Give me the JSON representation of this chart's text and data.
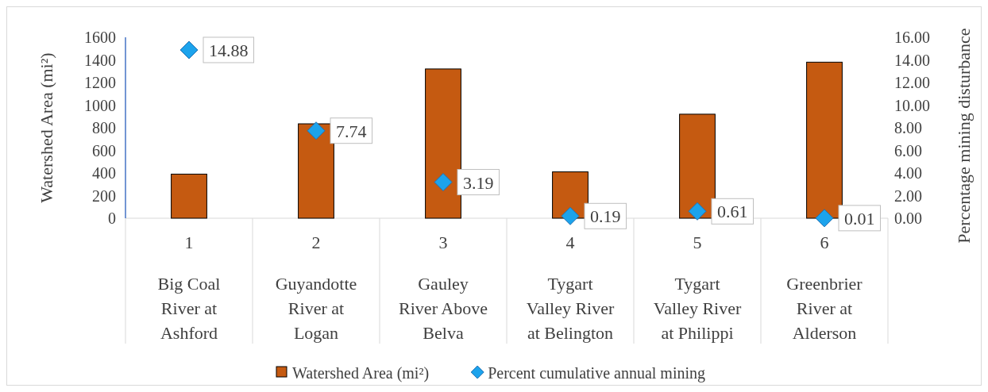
{
  "chart_data": {
    "type": "bar",
    "categories": [
      "1\nBig Coal River at Ashford",
      "2\nGuyandotte River at Logan",
      "3\nGauley River Above Belva",
      "4\nTygart Valley River at Belington",
      "5\nTygart Valley River at Philippi",
      "6\nGreenbrier River at Alderson"
    ],
    "series": [
      {
        "name": "Watershed Area (mi²)",
        "color": "#c55a11",
        "values": [
          390,
          835,
          1320,
          410,
          920,
          1380
        ]
      },
      {
        "name": "Percent cumulative annual mining",
        "type": "scatter",
        "axis": "y2",
        "marker": "diamond",
        "color": "#1ca3ec",
        "values": [
          14.88,
          7.74,
          3.19,
          0.19,
          0.61,
          0.01
        ],
        "data_labels": true
      }
    ],
    "ylabel": "Watershed Area (mi²)",
    "y2label": "Percentage mining disturbance",
    "ylim": [
      0,
      1600
    ],
    "yticks": [
      0,
      200,
      400,
      600,
      800,
      1000,
      1200,
      1400,
      1600
    ],
    "y2lim": [
      0,
      16
    ],
    "y2ticks": [
      {
        "value": 0,
        "label": "0.00"
      },
      {
        "value": 2,
        "label": "2.00"
      },
      {
        "value": 4,
        "label": "4.00"
      },
      {
        "value": 6,
        "label": "6.00"
      },
      {
        "value": 8,
        "label": "8.00"
      },
      {
        "value": 10,
        "label": "10.00"
      },
      {
        "value": 12,
        "label": "12.00"
      },
      {
        "value": 14,
        "label": "14.00"
      },
      {
        "value": 16,
        "label": "16.00"
      }
    ],
    "legend": "bottom"
  }
}
